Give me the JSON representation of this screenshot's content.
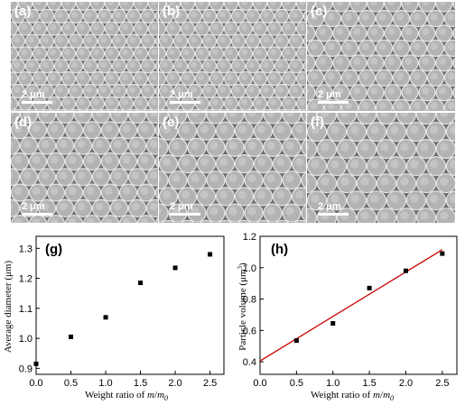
{
  "micrographs": [
    {
      "label": "(a)",
      "scale": "2 μm"
    },
    {
      "label": "(b)",
      "scale": "2 μm"
    },
    {
      "label": "(c)",
      "scale": "2 μm"
    },
    {
      "label": "(d)",
      "scale": "2 μm"
    },
    {
      "label": "(e)",
      "scale": "2 μm"
    },
    {
      "label": "(f)",
      "scale": "2 μm"
    }
  ],
  "chart_data": [
    {
      "type": "scatter",
      "panel": "(g)",
      "xlabel": "Weight ratio of m/m0",
      "xlabel_parts": {
        "text": "Weight ratio of ",
        "m": "m",
        "slash": "/",
        "m0": "m",
        "sub": "0"
      },
      "ylabel": "Average diameter (μm)",
      "xlim": [
        0,
        2.7
      ],
      "ylim": [
        0.88,
        1.34
      ],
      "xticks": [
        "0.0",
        "0.5",
        "1.0",
        "1.5",
        "2.0",
        "2.5"
      ],
      "xtick_values": [
        0,
        0.5,
        1.0,
        1.5,
        2.0,
        2.5
      ],
      "yticks": [
        "0.9",
        "1.0",
        "1.1",
        "1.2",
        "1.3"
      ],
      "ytick_values": [
        0.9,
        1.0,
        1.1,
        1.2,
        1.3
      ],
      "x": [
        0.0,
        0.5,
        1.0,
        1.5,
        2.0,
        2.5
      ],
      "y": [
        0.915,
        1.005,
        1.07,
        1.185,
        1.235,
        1.28
      ],
      "marker_color": "#000000"
    },
    {
      "type": "scatter",
      "panel": "(h)",
      "xlabel": "Weight ratio of m/m0",
      "xlabel_parts": {
        "text": "Weight ratio of ",
        "m": "m",
        "slash": "/",
        "m0": "m",
        "sub": "0"
      },
      "ylabel": "Particle volume (μm3)",
      "ylabel_parts": {
        "text": "Particle volume (μm",
        "sup": "3",
        "close": ")"
      },
      "xlim": [
        0,
        2.7
      ],
      "ylim": [
        0.32,
        1.2
      ],
      "xticks": [
        "0.0",
        "0.5",
        "1.0",
        "1.5",
        "2.0",
        "2.5"
      ],
      "xtick_values": [
        0,
        0.5,
        1.0,
        1.5,
        2.0,
        2.5
      ],
      "yticks": [
        "0.4",
        "0.6",
        "0.8",
        "1.0",
        "1.2"
      ],
      "ytick_values": [
        0.4,
        0.6,
        0.8,
        1.0,
        1.2
      ],
      "x": [
        0.5,
        1.0,
        1.5,
        2.0,
        2.5
      ],
      "y": [
        0.535,
        0.645,
        0.87,
        0.98,
        1.09
      ],
      "fit_line": {
        "x": [
          0.0,
          2.5
        ],
        "y": [
          0.405,
          1.115
        ]
      },
      "marker_color": "#000000",
      "line_color": "#cc0000"
    }
  ]
}
